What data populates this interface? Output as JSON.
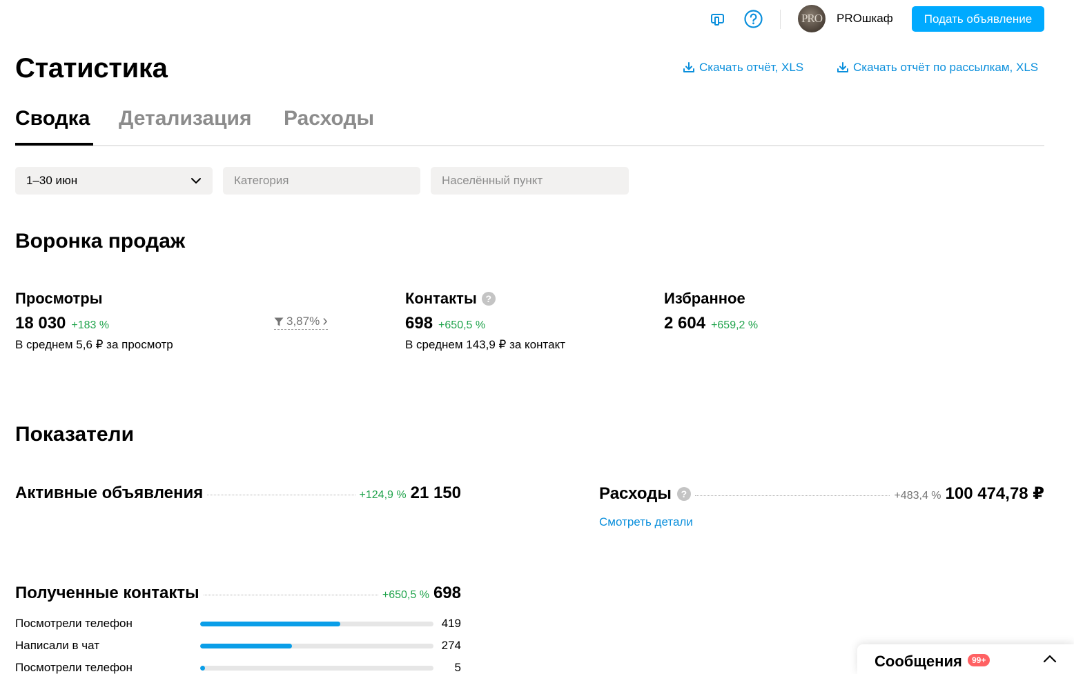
{
  "header": {
    "username": "PROшкаф",
    "avatar_text": "PRO",
    "post_button": "Подать объявление",
    "icons": [
      "promo-icon",
      "help-icon"
    ]
  },
  "page": {
    "title": "Статистика",
    "download_report": "Скачать отчёт, XLS",
    "download_mailing_report": "Скачать отчёт по рассылкам, XLS"
  },
  "tabs": [
    {
      "label": "Сводка",
      "active": true
    },
    {
      "label": "Детализация",
      "active": false
    },
    {
      "label": "Расходы",
      "active": false
    }
  ],
  "filters": {
    "period": "1–30 июн",
    "category_placeholder": "Категория",
    "location_placeholder": "Населённый пункт"
  },
  "funnel": {
    "title": "Воронка продаж",
    "views": {
      "label": "Просмотры",
      "value": "18 030",
      "change": "+183 %",
      "sub": "В среднем 5,6 ₽ за просмотр"
    },
    "conversion": "3,87%",
    "contacts": {
      "label": "Контакты",
      "value": "698",
      "change": "+650,5 %",
      "sub": "В среднем 143,9 ₽ за контакт"
    },
    "favorites": {
      "label": "Избранное",
      "value": "2 604",
      "change": "+659,2 %"
    }
  },
  "indicators": {
    "title": "Показатели",
    "active_ads": {
      "label": "Активные объявления",
      "change": "+124,9 %",
      "value": "21 150"
    },
    "expenses": {
      "label": "Расходы",
      "change": "+483,4 %",
      "value": "100 474,78 ₽",
      "details_link": "Смотреть детали"
    },
    "received_contacts": {
      "label": "Полученные контакты",
      "change": "+650,5 %",
      "value": "698",
      "rows": [
        {
          "label": "Посмотрели телефон",
          "value": "419",
          "fraction": 0.6
        },
        {
          "label": "Написали в чат",
          "value": "274",
          "fraction": 0.393
        },
        {
          "label": "Посмотрели телефон",
          "value": "5",
          "fraction": 0.02
        }
      ]
    }
  },
  "messenger": {
    "title": "Сообщения",
    "badge": "99+"
  },
  "colors": {
    "accent": "#00aaff",
    "link": "#0a8fdc",
    "positive": "#1fa34b",
    "badge": "#ff6163",
    "bar": "#0a9ee8"
  }
}
